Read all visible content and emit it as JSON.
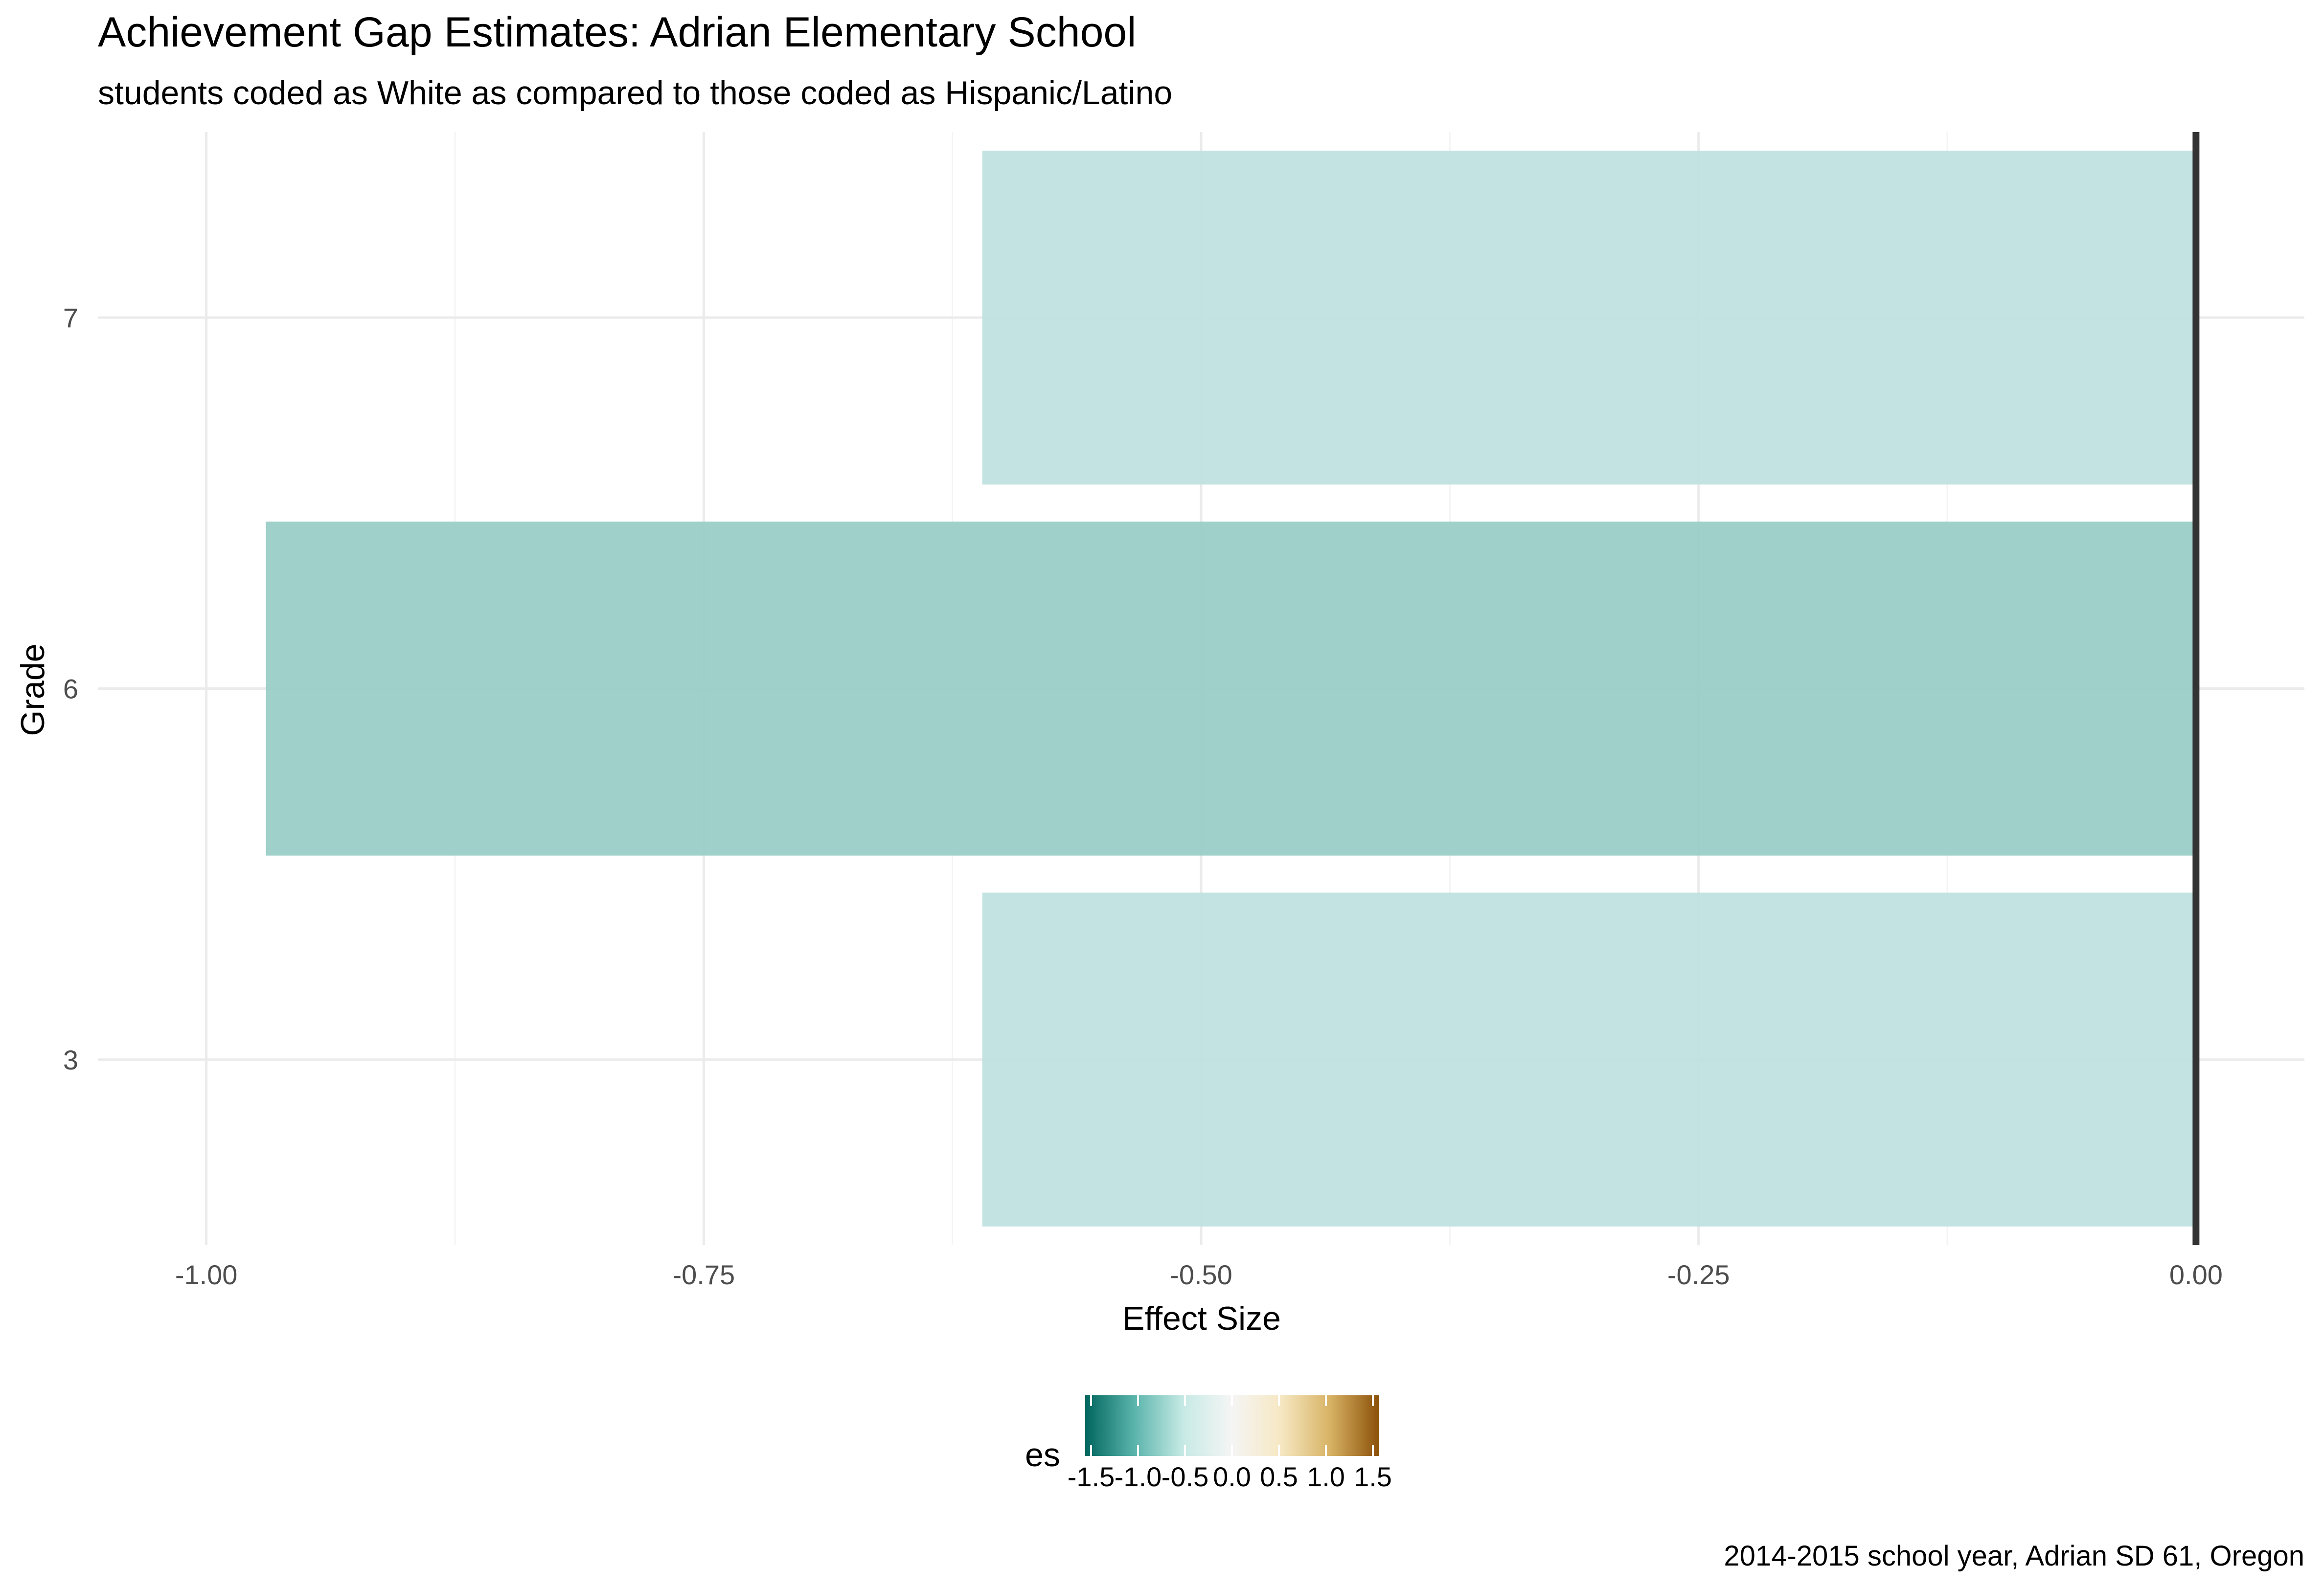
{
  "chart_data": {
    "type": "bar",
    "orientation": "horizontal",
    "title": "Achievement Gap Estimates: Adrian Elementary School",
    "subtitle": "students coded as White as compared to those coded as Hispanic/Latino",
    "xlabel": "Effect Size",
    "ylabel": "Grade",
    "caption": "2014-2015 school year, Adrian SD 61, Oregon",
    "categories": [
      "3",
      "6",
      "7"
    ],
    "values": [
      -0.61,
      -0.97,
      -0.61
    ],
    "xlim": [
      -1.0,
      0.0
    ],
    "x_ticks": [
      -1.0,
      -0.75,
      -0.5,
      -0.25,
      0.0
    ],
    "x_tick_labels": [
      "-1.00",
      "-0.75",
      "-0.50",
      "-0.25",
      "0.00"
    ],
    "grid": true,
    "reference_line": 0,
    "legend": {
      "title": "es",
      "position": "bottom",
      "type": "colorbar",
      "range": [
        -1.5,
        1.5
      ],
      "ticks": [
        -1.5,
        -1.0,
        -0.5,
        0.0,
        0.5,
        1.0,
        1.5
      ],
      "tick_labels": [
        "-1.5",
        "-1.0",
        "-0.5",
        "0.0",
        "0.5",
        "1.0",
        "1.5"
      ],
      "palette": [
        "#01665e",
        "#5ab4ac",
        "#c7eae5",
        "#f5f5f5",
        "#f6e8c3",
        "#d8b365",
        "#8c510a"
      ]
    },
    "bar_colors": [
      "#bfe2df",
      "#9acdc7",
      "#bfe2df"
    ],
    "colors": {
      "reference": "#333333",
      "grid_major": "#ebebeb",
      "grid_minor": "#f4f4f4",
      "text": "#000000",
      "axis_text": "#4d4d4d"
    }
  }
}
